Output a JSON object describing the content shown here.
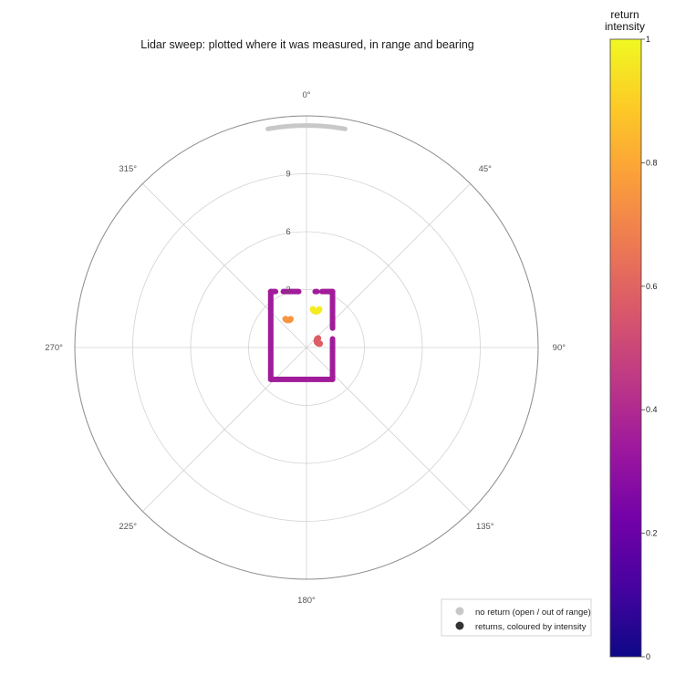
{
  "chart_data": {
    "type": "scatter",
    "projection": "polar",
    "title": "Lidar sweep: plotted where it was measured, in range and bearing",
    "angular_axis": {
      "direction": "clockwise",
      "zero_at": "top",
      "tick_labels": [
        "0°",
        "45°",
        "90°",
        "135°",
        "180°",
        "225°",
        "270°",
        "315°"
      ],
      "tick_values_deg": [
        0,
        45,
        90,
        135,
        180,
        225,
        270,
        315
      ]
    },
    "radial_axis": {
      "range": [
        0,
        12
      ],
      "tick_values": [
        3,
        6,
        9
      ],
      "tick_labels": [
        "3",
        "6",
        "9"
      ],
      "label_bearing_deg": 0
    },
    "grid": true,
    "colorbar": {
      "title_lines": [
        "return",
        "intensity"
      ],
      "range": [
        0,
        1
      ],
      "tick_values": [
        0,
        0.2,
        0.4,
        0.6,
        0.8,
        1
      ],
      "tick_labels": [
        "0",
        "0.2",
        "0.4",
        "0.6",
        "0.8",
        "1"
      ],
      "colormap": [
        "#0d0887",
        "#46039f",
        "#7201a8",
        "#9c179e",
        "#bd3786",
        "#d8576b",
        "#ed7953",
        "#fb9f3a",
        "#fdca26",
        "#f0f921"
      ]
    },
    "legend": {
      "placement": "bottom-right",
      "entries": [
        {
          "label": "no return (open / out of range)",
          "color": "#c8c8c8"
        },
        {
          "label": "returns, coloured by intensity",
          "color": "#333333"
        }
      ]
    },
    "no_return_color": "#c8c8c8",
    "series": [
      {
        "name": "no return (open / out of range)",
        "kind": "no-return",
        "bearing_deg_range": [
          350,
          10
        ],
        "range": 11.5
      },
      {
        "kind": "wall",
        "intensity": 0.35,
        "from_xy": [
          -1.85,
          2.9
        ],
        "to_xy": [
          -1.85,
          -1.65
        ]
      },
      {
        "kind": "wall",
        "intensity": 0.35,
        "from_xy": [
          -1.85,
          -1.65
        ],
        "to_xy": [
          1.35,
          -1.65
        ]
      },
      {
        "kind": "wall",
        "intensity": 0.35,
        "from_xy": [
          1.35,
          -1.65
        ],
        "to_xy": [
          1.35,
          0.45
        ]
      },
      {
        "kind": "wall",
        "intensity": 0.35,
        "from_xy": [
          1.35,
          1.0
        ],
        "to_xy": [
          1.35,
          2.9
        ]
      },
      {
        "kind": "wall",
        "intensity": 0.35,
        "from_xy": [
          -1.85,
          2.9
        ],
        "to_xy": [
          -1.6,
          2.9
        ]
      },
      {
        "kind": "wall",
        "intensity": 0.35,
        "from_xy": [
          -1.2,
          2.9
        ],
        "to_xy": [
          -0.4,
          2.9
        ]
      },
      {
        "kind": "wall",
        "intensity": 0.35,
        "from_xy": [
          0.45,
          2.9
        ],
        "to_xy": [
          0.55,
          2.9
        ]
      },
      {
        "kind": "wall",
        "intensity": 0.35,
        "from_xy": [
          0.8,
          2.9
        ],
        "to_xy": [
          1.35,
          2.9
        ]
      },
      {
        "kind": "object",
        "intensity": 0.75,
        "center_xy": [
          -0.95,
          1.6
        ],
        "radius": 0.18,
        "arc_deg": [
          220,
          320
        ]
      },
      {
        "kind": "object",
        "intensity": 0.97,
        "center_xy": [
          0.5,
          2.05
        ],
        "radius": 0.18,
        "arc_deg": [
          200,
          340
        ]
      },
      {
        "kind": "object",
        "intensity": 0.58,
        "center_xy": [
          0.68,
          0.35
        ],
        "radius": 0.15,
        "arc_deg": [
          120,
          280
        ]
      }
    ]
  }
}
